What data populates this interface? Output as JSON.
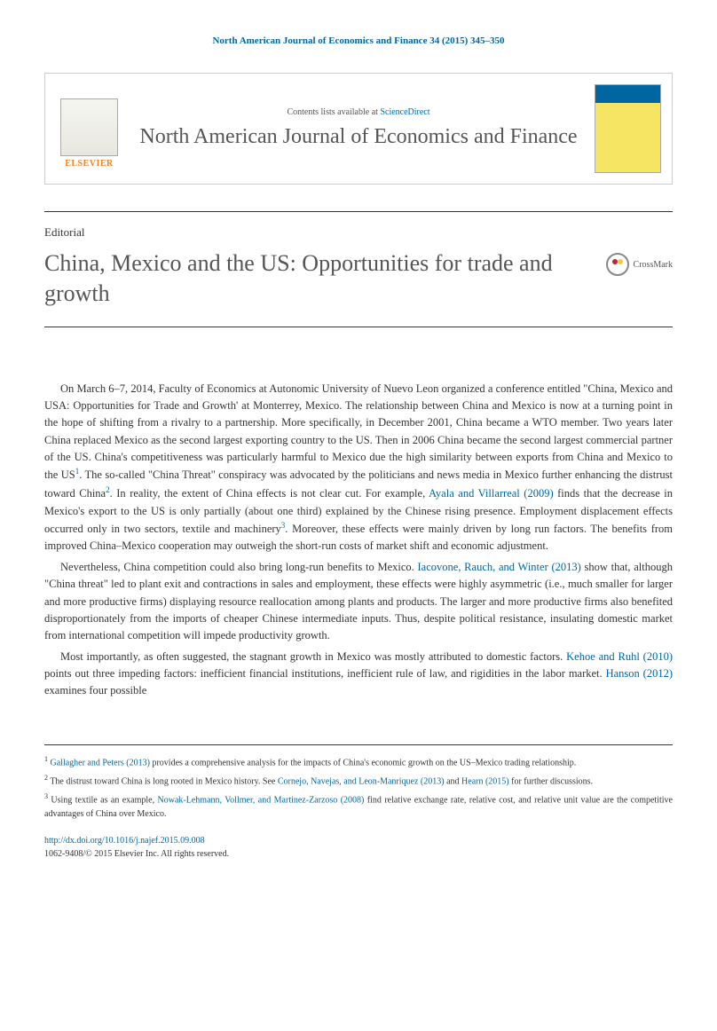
{
  "header_citation": "North American Journal of Economics and Finance 34 (2015) 345–350",
  "journal_box": {
    "contents_text": "Contents lists available at ",
    "sciencedirect": "ScienceDirect",
    "journal_name": "North American Journal of Economics and Finance",
    "elsevier": "ELSEVIER"
  },
  "editorial_label": "Editorial",
  "article_title": "China, Mexico and the US: Opportunities for trade and growth",
  "crossmark": "CrossMark",
  "paragraphs": {
    "p1_part1": "On March 6–7, 2014, Faculty of Economics at Autonomic University of Nuevo Leon organized a conference entitled \"China, Mexico and USA: Opportunities for Trade and Growth' at Monterrey, Mexico. The relationship between China and Mexico is now at a turning point in the hope of shifting from a rivalry to a partnership. More specifically, in December 2001, China became a WTO member. Two years later China replaced Mexico as the second largest exporting country to the US. Then in 2006 China became the second largest commercial partner of the US. China's competitiveness was particularly harmful to Mexico due the high similarity between exports from China and Mexico to the US",
    "p1_part2": ". The so-called \"China Threat\" conspiracy was advocated by the politicians and news media in Mexico further enhancing the distrust toward China",
    "p1_part3": ". In reality, the extent of China effects is not clear cut. For example, ",
    "p1_ref1": "Ayala and Villarreal (2009)",
    "p1_part4": " finds that the decrease in Mexico's export to the US is only partially (about one third) explained by the Chinese rising presence. Employment displacement effects occurred only in two sectors, textile and machinery",
    "p1_part5": ". Moreover, these effects were mainly driven by long run factors. The benefits from improved China–Mexico cooperation may outweigh the short-run costs of market shift and economic adjustment.",
    "p2_part1": "Nevertheless, China competition could also bring long-run benefits to Mexico. ",
    "p2_ref1": "Iacovone, Rauch, and Winter (2013)",
    "p2_part2": " show that, although \"China threat\" led to plant exit and contractions in sales and employment, these effects were highly asymmetric (i.e., much smaller for larger and more productive firms) displaying resource reallocation among plants and products. The larger and more productive firms also benefited disproportionately from the imports of cheaper Chinese intermediate inputs. Thus, despite political resistance, insulating domestic market from international competition will impede productivity growth.",
    "p3_part1": "Most importantly, as often suggested, the stagnant growth in Mexico was mostly attributed to domestic factors. ",
    "p3_ref1": "Kehoe and Ruhl (2010)",
    "p3_part2": " points out three impeding factors: inefficient financial institutions, inefficient rule of law, and rigidities in the labor market. ",
    "p3_ref2": "Hanson (2012)",
    "p3_part3": " examines four possible"
  },
  "footnotes": {
    "f1_num": "1",
    "f1_ref": "Gallagher and Peters (2013)",
    "f1_text": " provides a comprehensive analysis for the impacts of China's economic growth on the US–Mexico trading relationship.",
    "f2_num": "2",
    "f2_text1": " The distrust toward China is long rooted in Mexico history. See ",
    "f2_ref1": "Cornejo, Navejas, and Leon-Manriquez (2013)",
    "f2_text2": " and ",
    "f2_ref2": "Hearn (2015)",
    "f2_text3": " for further discussions.",
    "f3_num": "3",
    "f3_text1": " Using textile as an example, ",
    "f3_ref1": "Nowak-Lehmann, Vollmer, and Martinez-Zarzoso (2008)",
    "f3_text2": " find relative exchange rate, relative cost, and relative unit value are the competitive advantages of China over Mexico."
  },
  "footer": {
    "doi": "http://dx.doi.org/10.1016/j.najef.2015.09.008",
    "copyright": "1062-9408/© 2015 Elsevier Inc. All rights reserved."
  }
}
